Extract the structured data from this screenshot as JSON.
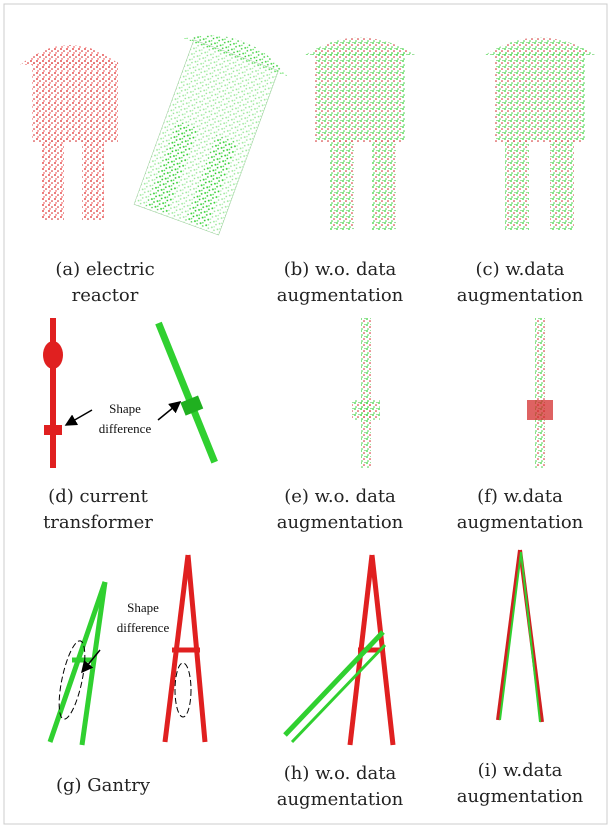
{
  "panels": [
    {
      "caption": [
        "(a) electric",
        "reactor"
      ]
    },
    {
      "caption": [
        "(b) w.o. data",
        "augmentation"
      ]
    },
    {
      "caption": [
        "(c) w.data",
        "augmentation"
      ]
    },
    {
      "caption": [
        "(d) current",
        "transformer"
      ]
    },
    {
      "caption": [
        "(e) w.o. data",
        "augmentation"
      ]
    },
    {
      "caption": [
        "(f) w.data",
        "augmentation"
      ]
    },
    {
      "caption": [
        "(g) Gantry"
      ]
    },
    {
      "caption": [
        "(h) w.o. data",
        "augmentation"
      ]
    },
    {
      "caption": [
        "(i) w.data",
        "augmentation"
      ]
    }
  ],
  "annotations": [
    {
      "lines": [
        "Shape",
        "difference"
      ]
    },
    {
      "lines": [
        "Shape",
        "difference"
      ]
    }
  ]
}
